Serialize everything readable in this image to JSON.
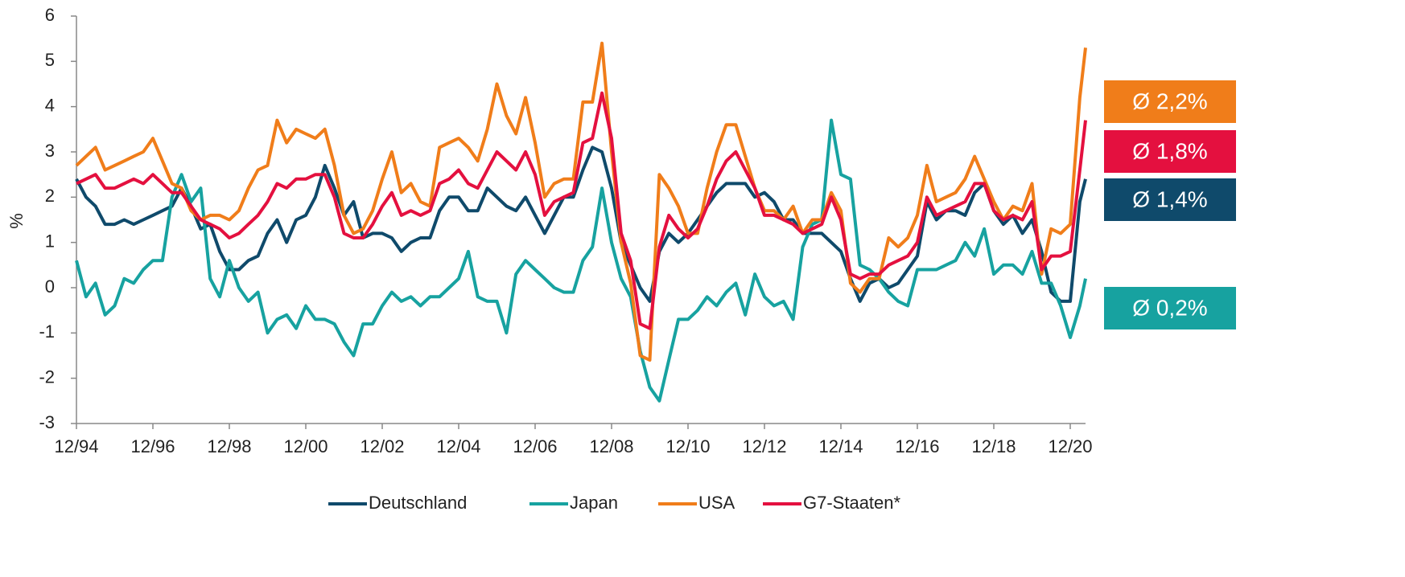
{
  "chart_data": {
    "type": "line",
    "y_label": "%",
    "x": [
      1995,
      1995.25,
      1995.5,
      1995.75,
      1996,
      1996.25,
      1996.5,
      1996.75,
      1997,
      1997.25,
      1997.5,
      1997.75,
      1998,
      1998.25,
      1998.5,
      1998.75,
      1999,
      1999.25,
      1999.5,
      1999.75,
      2000,
      2000.25,
      2000.5,
      2000.75,
      2001,
      2001.25,
      2001.5,
      2001.75,
      2002,
      2002.25,
      2002.5,
      2002.75,
      2003,
      2003.25,
      2003.5,
      2003.75,
      2004,
      2004.25,
      2004.5,
      2004.75,
      2005,
      2005.25,
      2005.5,
      2005.75,
      2006,
      2006.25,
      2006.5,
      2006.75,
      2007,
      2007.25,
      2007.5,
      2007.75,
      2008,
      2008.25,
      2008.5,
      2008.75,
      2009,
      2009.25,
      2009.5,
      2009.75,
      2010,
      2010.25,
      2010.5,
      2010.75,
      2011,
      2011.25,
      2011.5,
      2011.75,
      2012,
      2012.25,
      2012.5,
      2012.75,
      2013,
      2013.25,
      2013.5,
      2013.75,
      2014,
      2014.25,
      2014.5,
      2014.75,
      2015,
      2015.25,
      2015.5,
      2015.75,
      2016,
      2016.25,
      2016.5,
      2016.75,
      2017,
      2017.25,
      2017.5,
      2017.75,
      2018,
      2018.25,
      2018.5,
      2018.75,
      2019,
      2019.25,
      2019.5,
      2019.75,
      2020,
      2020.25,
      2020.5,
      2020.75,
      2021,
      2021.25,
      2021.4
    ],
    "xlim": [
      1995,
      2021.4
    ],
    "xticks": [
      {
        "value": 1995,
        "label": "12/94"
      },
      {
        "value": 1997,
        "label": "12/96"
      },
      {
        "value": 1999,
        "label": "12/98"
      },
      {
        "value": 2001,
        "label": "12/00"
      },
      {
        "value": 2003,
        "label": "12/02"
      },
      {
        "value": 2005,
        "label": "12/04"
      },
      {
        "value": 2007,
        "label": "12/06"
      },
      {
        "value": 2009,
        "label": "12/08"
      },
      {
        "value": 2011,
        "label": "12/10"
      },
      {
        "value": 2013,
        "label": "12/12"
      },
      {
        "value": 2015,
        "label": "12/14"
      },
      {
        "value": 2017,
        "label": "12/16"
      },
      {
        "value": 2019,
        "label": "12/18"
      },
      {
        "value": 2021,
        "label": "12/20"
      }
    ],
    "ylim": [
      -3,
      6
    ],
    "yticks": [
      -3,
      -2,
      -1,
      0,
      1,
      2,
      3,
      4,
      5,
      6
    ],
    "series": [
      {
        "name": "Deutschland",
        "color": "#0f4a6b",
        "average_label": "Ø 1,4%",
        "values": [
          2.4,
          2.0,
          1.8,
          1.4,
          1.4,
          1.5,
          1.4,
          1.5,
          1.6,
          1.7,
          1.8,
          2.2,
          1.8,
          1.3,
          1.4,
          0.8,
          0.4,
          0.4,
          0.6,
          0.7,
          1.2,
          1.5,
          1.0,
          1.5,
          1.6,
          2.0,
          2.7,
          2.2,
          1.6,
          1.9,
          1.1,
          1.2,
          1.2,
          1.1,
          0.8,
          1.0,
          1.1,
          1.1,
          1.7,
          2.0,
          2.0,
          1.7,
          1.7,
          2.2,
          2.0,
          1.8,
          1.7,
          2.0,
          1.6,
          1.2,
          1.6,
          2.0,
          2.0,
          2.6,
          3.1,
          3.0,
          2.2,
          1.0,
          0.5,
          0.0,
          -0.3,
          0.8,
          1.2,
          1.0,
          1.2,
          1.5,
          1.8,
          2.1,
          2.3,
          2.3,
          2.3,
          2.0,
          2.1,
          1.9,
          1.5,
          1.5,
          1.2,
          1.2,
          1.2,
          1.0,
          0.8,
          0.2,
          -0.3,
          0.1,
          0.2,
          0.0,
          0.1,
          0.4,
          0.7,
          1.9,
          1.5,
          1.7,
          1.7,
          1.6,
          2.1,
          2.3,
          1.7,
          1.4,
          1.6,
          1.2,
          1.5,
          0.8,
          -0.1,
          -0.3,
          -0.3,
          1.9,
          2.4
        ]
      },
      {
        "name": "Japan",
        "color": "#17a2a0",
        "average_label": "Ø 0,2%",
        "values": [
          0.6,
          -0.2,
          0.1,
          -0.6,
          -0.4,
          0.2,
          0.1,
          0.4,
          0.6,
          0.6,
          2.0,
          2.5,
          1.9,
          2.2,
          0.2,
          -0.2,
          0.6,
          0.0,
          -0.3,
          -0.1,
          -1.0,
          -0.7,
          -0.6,
          -0.9,
          -0.4,
          -0.7,
          -0.7,
          -0.8,
          -1.2,
          -1.5,
          -0.8,
          -0.8,
          -0.4,
          -0.1,
          -0.3,
          -0.2,
          -0.4,
          -0.2,
          -0.2,
          0.0,
          0.2,
          0.8,
          -0.2,
          -0.3,
          -0.3,
          -1.0,
          0.3,
          0.6,
          0.4,
          0.2,
          0.0,
          -0.1,
          -0.1,
          0.6,
          0.9,
          2.2,
          1.0,
          0.2,
          -0.2,
          -1.4,
          -2.2,
          -2.5,
          -1.6,
          -0.7,
          -0.7,
          -0.5,
          -0.2,
          -0.4,
          -0.1,
          0.1,
          -0.6,
          0.3,
          -0.2,
          -0.4,
          -0.3,
          -0.7,
          0.9,
          1.4,
          1.5,
          3.7,
          2.5,
          2.4,
          0.5,
          0.4,
          0.2,
          -0.1,
          -0.3,
          -0.4,
          0.4,
          0.4,
          0.4,
          0.5,
          0.6,
          1.0,
          0.7,
          1.3,
          0.3,
          0.5,
          0.5,
          0.3,
          0.8,
          0.1,
          0.1,
          -0.4,
          -1.1,
          -0.4,
          0.2
        ]
      },
      {
        "name": "USA",
        "color": "#f07d1a",
        "average_label": "Ø 2,2%",
        "values": [
          2.7,
          2.9,
          3.1,
          2.6,
          2.7,
          2.8,
          2.9,
          3.0,
          3.3,
          2.8,
          2.3,
          2.2,
          1.7,
          1.5,
          1.6,
          1.6,
          1.5,
          1.7,
          2.2,
          2.6,
          2.7,
          3.7,
          3.2,
          3.5,
          3.4,
          3.3,
          3.5,
          2.7,
          1.6,
          1.2,
          1.3,
          1.7,
          2.4,
          3.0,
          2.1,
          2.3,
          1.9,
          1.8,
          3.1,
          3.2,
          3.3,
          3.1,
          2.8,
          3.5,
          4.5,
          3.8,
          3.4,
          4.2,
          3.2,
          2.0,
          2.3,
          2.4,
          2.4,
          4.1,
          4.1,
          5.4,
          3.0,
          1.0,
          0.1,
          -1.5,
          -1.6,
          2.5,
          2.2,
          1.8,
          1.2,
          1.2,
          2.2,
          3.0,
          3.6,
          3.6,
          2.9,
          2.2,
          1.7,
          1.7,
          1.5,
          1.8,
          1.2,
          1.5,
          1.5,
          2.1,
          1.7,
          0.1,
          -0.1,
          0.2,
          0.2,
          1.1,
          0.9,
          1.1,
          1.6,
          2.7,
          1.9,
          2.0,
          2.1,
          2.4,
          2.9,
          2.4,
          1.9,
          1.5,
          1.8,
          1.7,
          2.3,
          0.3,
          1.3,
          1.2,
          1.4,
          4.2,
          5.3
        ]
      },
      {
        "name": "G7-Staaten*",
        "color": "#e4103f",
        "average_label": "Ø 1,8%",
        "values": [
          2.3,
          2.4,
          2.5,
          2.2,
          2.2,
          2.3,
          2.4,
          2.3,
          2.5,
          2.3,
          2.1,
          2.1,
          1.8,
          1.5,
          1.4,
          1.3,
          1.1,
          1.2,
          1.4,
          1.6,
          1.9,
          2.3,
          2.2,
          2.4,
          2.4,
          2.5,
          2.5,
          2.0,
          1.2,
          1.1,
          1.1,
          1.4,
          1.8,
          2.1,
          1.6,
          1.7,
          1.6,
          1.7,
          2.3,
          2.4,
          2.6,
          2.3,
          2.2,
          2.6,
          3.0,
          2.8,
          2.6,
          3.0,
          2.5,
          1.6,
          1.9,
          2.0,
          2.1,
          3.2,
          3.3,
          4.3,
          3.3,
          1.2,
          0.6,
          -0.8,
          -0.9,
          0.9,
          1.6,
          1.3,
          1.1,
          1.3,
          1.8,
          2.4,
          2.8,
          3.0,
          2.6,
          2.2,
          1.6,
          1.6,
          1.5,
          1.4,
          1.2,
          1.3,
          1.4,
          2.0,
          1.5,
          0.3,
          0.2,
          0.3,
          0.3,
          0.5,
          0.6,
          0.7,
          1.0,
          2.0,
          1.6,
          1.7,
          1.8,
          1.9,
          2.3,
          2.3,
          1.7,
          1.5,
          1.6,
          1.5,
          1.9,
          0.4,
          0.7,
          0.7,
          0.8,
          2.6,
          3.7
        ]
      }
    ]
  }
}
